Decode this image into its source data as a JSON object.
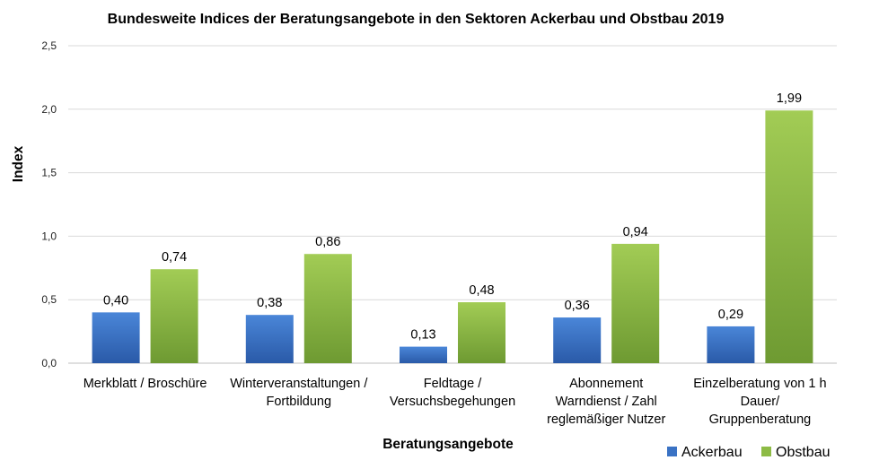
{
  "chart_data": {
    "type": "bar",
    "title": "Bundesweite Indices der Beratungsangebote in den Sektoren Ackerbau und Obstbau 2019",
    "xlabel": "Beratungsangebote",
    "ylabel": "Index",
    "ylim": [
      0,
      2.5
    ],
    "yticks": [
      "0,0",
      "0,5",
      "1,0",
      "1,5",
      "2,0",
      "2,5"
    ],
    "grid": true,
    "legend_position": "bottom-right",
    "categories": [
      [
        "Merkblatt / Broschüre"
      ],
      [
        "Winterveranstaltungen /",
        "Fortbildung"
      ],
      [
        "Feldtage /",
        "Versuchsbegehungen"
      ],
      [
        "Abonnement",
        "Warndienst / Zahl",
        "reglemäßiger Nutzer"
      ],
      [
        "Einzelberatung von 1 h",
        "Dauer/",
        "Gruppenberatung"
      ]
    ],
    "series": [
      {
        "name": "Ackerbau",
        "color": "#3a72c4",
        "values": [
          0.4,
          0.38,
          0.13,
          0.36,
          0.29
        ],
        "labels": [
          "0,40",
          "0,38",
          "0,13",
          "0,36",
          "0,29"
        ]
      },
      {
        "name": "Obstbau",
        "color": "#8dbb45",
        "values": [
          0.74,
          0.86,
          0.48,
          0.94,
          1.99
        ],
        "labels": [
          "0,74",
          "0,86",
          "0,48",
          "0,94",
          "1,99"
        ]
      }
    ]
  }
}
